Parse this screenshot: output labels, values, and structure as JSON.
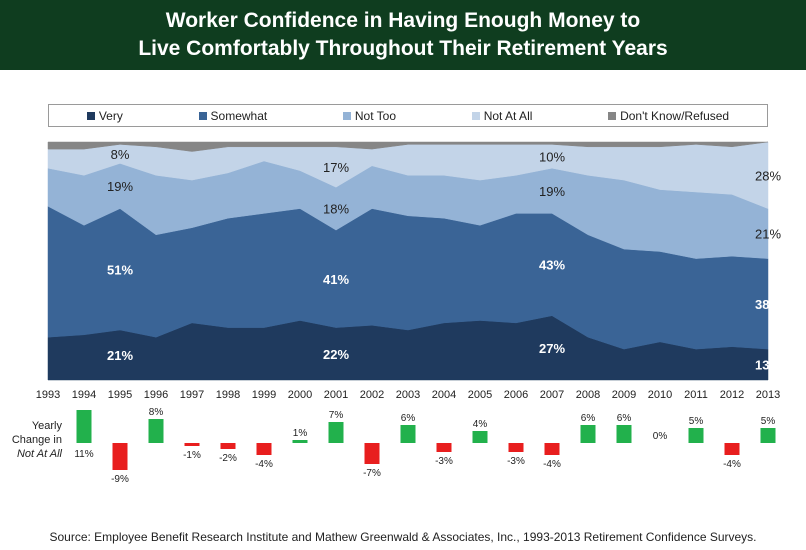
{
  "title_line1": "Worker Confidence in Having Enough Money to",
  "title_line2": "Live Comfortably Throughout Their Retirement Years",
  "source": "Source:  Employee Benefit Research Institute and Mathew Greenwald & Associates, Inc., 1993-2013 Retirement Confidence Surveys.",
  "change_label": [
    "Yearly",
    "Change in",
    "Not At All"
  ],
  "colors": {
    "header": "#0f3d1f",
    "very": "#1f3a5e",
    "somewhat": "#3a6496",
    "not_too": "#94b3d6",
    "not_at_all": "#c3d4e8",
    "dont_know": "#868686",
    "pos": "#22b14c",
    "neg": "#e81e1e"
  },
  "chart_data": [
    {
      "type": "area",
      "stacked": true,
      "x": [
        1993,
        1994,
        1995,
        1996,
        1997,
        1998,
        1999,
        2000,
        2001,
        2002,
        2003,
        2004,
        2005,
        2006,
        2007,
        2008,
        2009,
        2010,
        2011,
        2012,
        2013
      ],
      "ylim": [
        0,
        100
      ],
      "legend_position": "top",
      "series": [
        {
          "name": "Very",
          "color": "#1f3a5e",
          "values": [
            18,
            19,
            21,
            18,
            24,
            22,
            22,
            25,
            22,
            23,
            21,
            24,
            25,
            24,
            27,
            18,
            13,
            16,
            13,
            14,
            13
          ]
        },
        {
          "name": "Somewhat",
          "color": "#3a6496",
          "values": [
            55,
            46,
            51,
            43,
            40,
            46,
            48,
            47,
            41,
            49,
            48,
            44,
            40,
            46,
            43,
            43,
            42,
            38,
            38,
            38,
            38
          ]
        },
        {
          "name": "Not Too",
          "color": "#94b3d6",
          "values": [
            16,
            21,
            19,
            25,
            20,
            19,
            22,
            16,
            18,
            18,
            17,
            18,
            19,
            16,
            19,
            25,
            29,
            26,
            28,
            26,
            21
          ]
        },
        {
          "name": "Not At All",
          "color": "#c3d4e8",
          "values": [
            8,
            11,
            8,
            12,
            12,
            11,
            6,
            10,
            17,
            7,
            13,
            13,
            15,
            13,
            10,
            12,
            14,
            18,
            20,
            20,
            28
          ]
        },
        {
          "name": "Don't Know/Refused",
          "color": "#868686",
          "values": [
            3,
            3,
            1,
            2,
            4,
            2,
            2,
            2,
            2,
            3,
            1,
            1,
            1,
            1,
            1,
            2,
            2,
            2,
            1,
            2,
            0
          ]
        }
      ],
      "data_labels": [
        {
          "x": 1995,
          "series": "Very",
          "text": "21%"
        },
        {
          "x": 1995,
          "series": "Somewhat",
          "text": "51%"
        },
        {
          "x": 1995,
          "series": "Not Too",
          "text": "19%"
        },
        {
          "x": 1995,
          "series": "Not At All",
          "text": "8%"
        },
        {
          "x": 2001,
          "series": "Very",
          "text": "22%"
        },
        {
          "x": 2001,
          "series": "Somewhat",
          "text": "41%"
        },
        {
          "x": 2001,
          "series": "Not Too",
          "text": "18%"
        },
        {
          "x": 2001,
          "series": "Not At All",
          "text": "17%"
        },
        {
          "x": 2007,
          "series": "Very",
          "text": "27%"
        },
        {
          "x": 2007,
          "series": "Somewhat",
          "text": "43%"
        },
        {
          "x": 2007,
          "series": "Not Too",
          "text": "19%"
        },
        {
          "x": 2007,
          "series": "Not At All",
          "text": "10%"
        },
        {
          "x": 2013,
          "series": "Very",
          "text": "13%"
        },
        {
          "x": 2013,
          "series": "Somewhat",
          "text": "38%"
        },
        {
          "x": 2013,
          "series": "Not Too",
          "text": "21%"
        },
        {
          "x": 2013,
          "series": "Not At All",
          "text": "28%"
        }
      ]
    },
    {
      "type": "bar",
      "ylabel": "Yearly Change in Not At All",
      "categories": [
        1994,
        1995,
        1996,
        1997,
        1998,
        1999,
        2000,
        2001,
        2002,
        2003,
        2004,
        2005,
        2006,
        2007,
        2008,
        2009,
        2010,
        2011,
        2012,
        2013
      ],
      "values": [
        11,
        -9,
        8,
        -1,
        -2,
        -4,
        1,
        7,
        -7,
        6,
        -3,
        4,
        -3,
        -4,
        6,
        6,
        0,
        5,
        -4,
        5
      ],
      "labels": [
        "11%",
        "-9%",
        "8%",
        "-1%",
        "-2%",
        "-4%",
        "1%",
        "7%",
        "-7%",
        "6%",
        "-3%",
        "4%",
        "-3%",
        "-4%",
        "6%",
        "6%",
        "0%",
        "5%",
        "-4%",
        "5%"
      ]
    }
  ]
}
